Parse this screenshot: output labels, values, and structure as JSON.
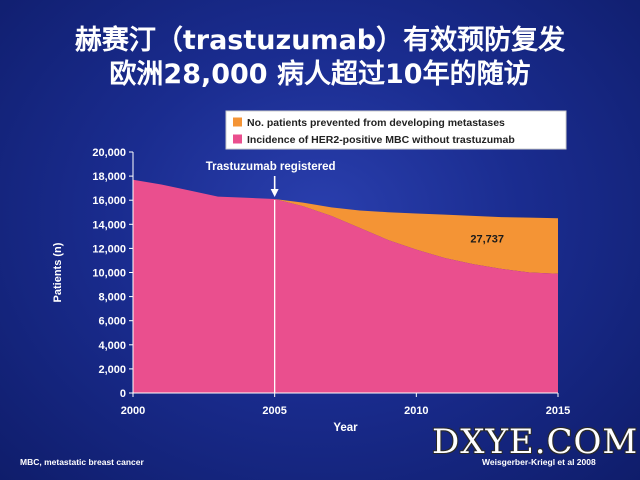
{
  "title": {
    "line1": "赫赛汀（trastuzumab）有效预防复发",
    "line2": "欧洲28,000 病人超过10年的随访"
  },
  "chart_data": {
    "type": "area",
    "xlabel": "Year",
    "ylabel": "Patients (n)",
    "xlim": [
      2000,
      2015
    ],
    "ylim": [
      0,
      20000
    ],
    "x_ticks": [
      "2000",
      "2005",
      "2010",
      "2015"
    ],
    "y_ticks": [
      "0",
      "2,000",
      "4,000",
      "6,000",
      "8,000",
      "10,000",
      "12,000",
      "14,000",
      "16,000",
      "18,000",
      "20,000"
    ],
    "legend_position": "top",
    "series": [
      {
        "name": "Incidence of HER2-positive MBC without trastuzumab",
        "color": "#ea4f8e",
        "points": [
          [
            2000,
            17700
          ],
          [
            2001,
            17300
          ],
          [
            2002,
            16800
          ],
          [
            2003,
            16300
          ],
          [
            2004,
            16200
          ],
          [
            2005,
            16100
          ],
          [
            2006,
            15500
          ],
          [
            2007,
            14700
          ],
          [
            2008,
            13700
          ],
          [
            2009,
            12700
          ],
          [
            2010,
            11900
          ],
          [
            2011,
            11200
          ],
          [
            2012,
            10700
          ],
          [
            2013,
            10300
          ],
          [
            2014,
            10000
          ],
          [
            2015,
            9900
          ]
        ]
      },
      {
        "name": "No. patients prevented from developing metastases",
        "color": "#f49435",
        "points": [
          [
            2005,
            16100
          ],
          [
            2006,
            15800
          ],
          [
            2007,
            15400
          ],
          [
            2008,
            15150
          ],
          [
            2009,
            15000
          ],
          [
            2010,
            14900
          ],
          [
            2011,
            14800
          ],
          [
            2012,
            14700
          ],
          [
            2013,
            14600
          ],
          [
            2014,
            14550
          ],
          [
            2015,
            14500
          ]
        ]
      }
    ],
    "annotations": [
      {
        "text": "Trastuzumab registered",
        "x": 2005
      },
      {
        "text": "27,737",
        "x": 2012.5,
        "y": 12500
      }
    ]
  },
  "footer": {
    "left": "MBC, metastatic breast cancer",
    "right": "Weisgerber-Kriegl et al 2008"
  },
  "watermark": "DXYE.COM"
}
